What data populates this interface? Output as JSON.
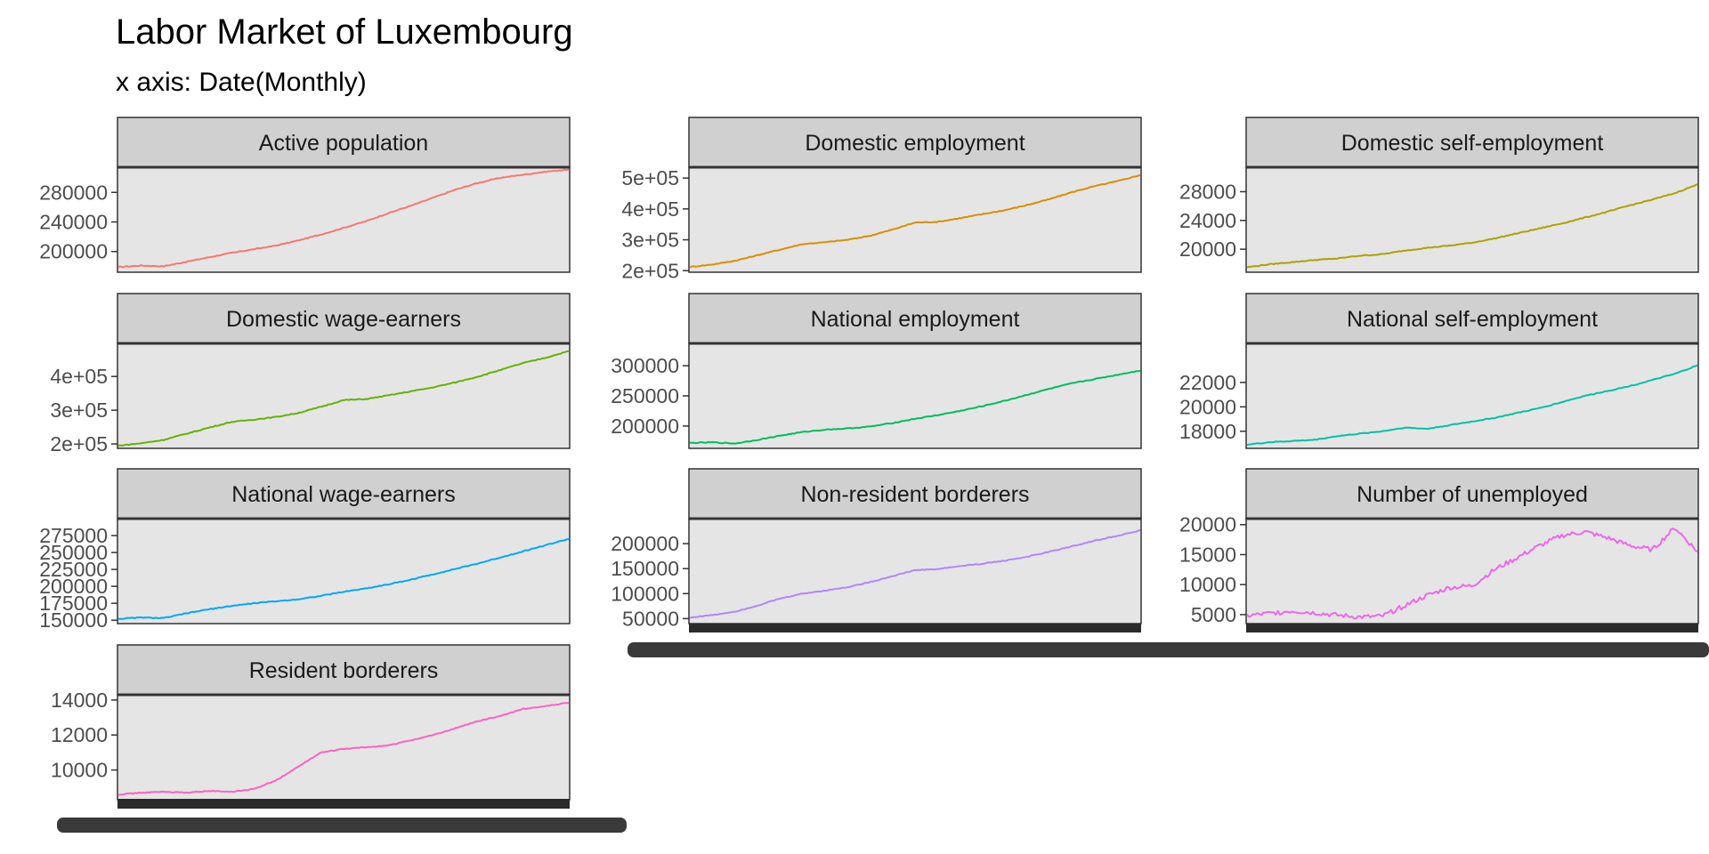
{
  "chart_data": {
    "type": "line",
    "title": "Labor Market of Luxembourg",
    "subtitle": "x axis: Date(Monthly)",
    "facet_layout": "3 columns, free y scales",
    "grid": false,
    "legend": "none",
    "x_points": 220,
    "panels": [
      {
        "name": "Active population",
        "color": "#F8766D",
        "ylim": [
          172000,
          314000
        ],
        "ticks": [
          200000,
          240000,
          280000
        ],
        "tick_labels": [
          "200000",
          "240000",
          "280000"
        ],
        "values": [
          179000,
          181000,
          180000,
          186000,
          192000,
          198000,
          203000,
          208000,
          215000,
          223000,
          232000,
          241000,
          252000,
          262000,
          273000,
          284000,
          293000,
          300000,
          304000,
          308000,
          311000
        ]
      },
      {
        "name": "Domestic employment",
        "color": "#DB8E00",
        "ylim": [
          195000,
          535000
        ],
        "ticks": [
          200000,
          300000,
          400000,
          500000
        ],
        "tick_labels": [
          "2e+05",
          "3e+05",
          "4e+05",
          "5e+05"
        ],
        "values": [
          212000,
          220000,
          232000,
          250000,
          268000,
          286000,
          292000,
          300000,
          313000,
          333000,
          356000,
          358000,
          370000,
          383000,
          396000,
          413000,
          432000,
          455000,
          474000,
          490000,
          510000
        ]
      },
      {
        "name": "Domestic self-employment",
        "color": "#AEA200",
        "ylim": [
          16800,
          31400
        ],
        "ticks": [
          20000,
          24000,
          28000
        ],
        "tick_labels": [
          "20000",
          "24000",
          "28000"
        ],
        "values": [
          17500,
          17900,
          18200,
          18500,
          18700,
          19100,
          19300,
          19800,
          20200,
          20500,
          20900,
          21500,
          22200,
          22900,
          23600,
          24400,
          25200,
          26100,
          26900,
          27800,
          29000
        ]
      },
      {
        "name": "Domestic wage-earners",
        "color": "#64B200",
        "ylim": [
          187000,
          498000
        ],
        "ticks": [
          200000,
          300000,
          400000
        ],
        "tick_labels": [
          "2e+05",
          "3e+05",
          "4e+05"
        ],
        "values": [
          195000,
          202000,
          212000,
          230000,
          248000,
          265000,
          272000,
          280000,
          292000,
          310000,
          330000,
          333000,
          344000,
          356000,
          368000,
          383000,
          400000,
          420000,
          440000,
          456000,
          475000
        ]
      },
      {
        "name": "National employment",
        "color": "#00BD5C",
        "ylim": [
          163000,
          337000
        ],
        "ticks": [
          200000,
          250000,
          300000
        ],
        "tick_labels": [
          "200000",
          "250000",
          "300000"
        ],
        "values": [
          172000,
          173000,
          171000,
          177000,
          184000,
          190000,
          194000,
          196000,
          199000,
          205000,
          212000,
          218000,
          225000,
          233000,
          242000,
          252000,
          262000,
          271000,
          278000,
          285000,
          292000
        ]
      },
      {
        "name": "National self-employment",
        "color": "#00C1A7",
        "ylim": [
          16600,
          25200
        ],
        "ticks": [
          18000,
          20000,
          22000
        ],
        "tick_labels": [
          "18000",
          "20000",
          "22000"
        ],
        "values": [
          16900,
          17100,
          17200,
          17300,
          17600,
          17800,
          18000,
          18300,
          18200,
          18500,
          18800,
          19100,
          19500,
          19900,
          20400,
          20900,
          21300,
          21700,
          22200,
          22700,
          23400
        ]
      },
      {
        "name": "National wage-earners",
        "color": "#00A6FF",
        "ylim": [
          145000,
          300000
        ],
        "ticks": [
          150000,
          175000,
          200000,
          225000,
          250000,
          275000
        ],
        "tick_labels": [
          "150000",
          "175000",
          "200000",
          "225000",
          "250000",
          "275000"
        ],
        "values": [
          152000,
          154000,
          153000,
          160000,
          166000,
          171000,
          175000,
          178000,
          181000,
          186000,
          192000,
          197000,
          203000,
          210000,
          218000,
          226000,
          234000,
          243000,
          252000,
          261000,
          270000
        ]
      },
      {
        "name": "Non-resident borderers",
        "color": "#B385FF",
        "ylim": [
          40000,
          250000
        ],
        "ticks": [
          50000,
          100000,
          150000,
          200000
        ],
        "tick_labels": [
          "50000",
          "100000",
          "150000",
          "200000"
        ],
        "values": [
          52000,
          57000,
          64000,
          76000,
          90000,
          100000,
          106000,
          113000,
          123000,
          135000,
          147000,
          149000,
          155000,
          160000,
          166000,
          174000,
          184000,
          195000,
          206000,
          216000,
          226000
        ]
      },
      {
        "name": "Number of unemployed",
        "color": "#EF67EB",
        "ylim": [
          3500,
          21000
        ],
        "ticks": [
          5000,
          10000,
          15000,
          20000
        ],
        "tick_labels": [
          "5000",
          "10000",
          "15000",
          "20000"
        ],
        "values": [
          4800,
          5200,
          5600,
          5300,
          4900,
          4600,
          4700,
          6500,
          8200,
          9500,
          9800,
          12500,
          14500,
          16500,
          18200,
          18800,
          17800,
          16500,
          15800,
          19500,
          15500
        ]
      },
      {
        "name": "Resident borderers",
        "color": "#FF61C3",
        "ylim": [
          8300,
          14300
        ],
        "ticks": [
          10000,
          12000,
          14000
        ],
        "tick_labels": [
          "10000",
          "12000",
          "14000"
        ],
        "values": [
          8600,
          8700,
          8750,
          8700,
          8800,
          8750,
          8900,
          9400,
          10200,
          11000,
          11200,
          11300,
          11400,
          11700,
          12000,
          12400,
          12800,
          13100,
          13500,
          13650,
          13850
        ]
      }
    ]
  }
}
